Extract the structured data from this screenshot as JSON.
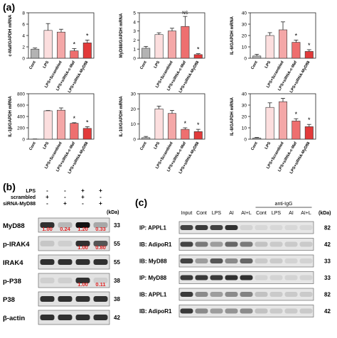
{
  "panels": {
    "a": "(a)",
    "b": "(b)",
    "c": "(c)"
  },
  "colors": {
    "gray": "#b3b3b3",
    "pink_light": "#fcdede",
    "pink": "#f4a7a7",
    "salmon": "#ee6f6f",
    "red": "#e23a3a"
  },
  "chart_data": [
    {
      "type": "bar",
      "ylabel": "c-Maf/GAPDH mRNA",
      "categories": [
        "Cont",
        "LPS",
        "LPS+Scrambled",
        "LPS+siRNA-c-Maf",
        "LPS+siRNA-MyD88"
      ],
      "values": [
        1.6,
        4.9,
        4.6,
        1.3,
        2.7
      ],
      "errors": [
        0.2,
        1.2,
        0.5,
        0.4,
        0.5
      ],
      "annotations": [
        "",
        "",
        "",
        "*",
        "*"
      ],
      "yticks": [
        0,
        2,
        4,
        6,
        8
      ],
      "ylim": [
        0,
        8
      ]
    },
    {
      "type": "bar",
      "ylabel": "MyD88/GAPDH mRNA",
      "categories": [
        "Cont",
        "LPS",
        "LPS+Scrambled",
        "LPS+siRNA-c-Maf",
        "LPS+siRNA-MyD88"
      ],
      "values": [
        1.1,
        2.6,
        3.0,
        3.5,
        0.4
      ],
      "errors": [
        0.2,
        0.2,
        0.3,
        1.1,
        0.1
      ],
      "annotations": [
        "",
        "",
        "",
        "NS",
        "*"
      ],
      "yticks": [
        0,
        1,
        2,
        3,
        4,
        5
      ],
      "ylim": [
        0,
        5
      ]
    },
    {
      "type": "bar",
      "ylabel": "IL-6/GAPDH mRNA",
      "categories": [
        "Cont",
        "LPS",
        "LPS+Scrambled",
        "LPS+siRNA-c-Maf",
        "LPS+siRNA-MyD88"
      ],
      "values": [
        2,
        20,
        25,
        14,
        6
      ],
      "errors": [
        1.5,
        2.5,
        7,
        2,
        1.5
      ],
      "annotations": [
        "",
        "",
        "",
        "*",
        "*"
      ],
      "yticks": [
        0,
        10,
        20,
        30,
        40
      ],
      "ylim": [
        0,
        40
      ]
    },
    {
      "type": "bar",
      "ylabel": "IL-1β/GAPDH mRNA",
      "categories": [
        "Cont",
        "LPS",
        "LPS+Scrambled",
        "LPS+siRNA-c-Maf",
        "LPS+siRNA-MyD88"
      ],
      "values": [
        2,
        500,
        510,
        280,
        190
      ],
      "errors": [
        2,
        5,
        40,
        10,
        30
      ],
      "annotations": [
        "",
        "",
        "",
        "*",
        "*"
      ],
      "yticks": [
        0,
        200,
        400,
        600,
        800
      ],
      "ylim": [
        0,
        800
      ]
    },
    {
      "type": "bar",
      "ylabel": "IL-10/GAPDH mRNA",
      "categories": [
        "Cont",
        "LPS",
        "LPS+Scrambled",
        "LPS+siRNA-c-Maf",
        "LPS+siRNA-MyD88"
      ],
      "values": [
        1,
        20,
        17,
        6.5,
        5
      ],
      "errors": [
        0.8,
        1.8,
        2,
        1,
        1.5
      ],
      "annotations": [
        "",
        "",
        "",
        "*",
        "*"
      ],
      "yticks": [
        0,
        10,
        20,
        30
      ],
      "ylim": [
        0,
        30
      ]
    },
    {
      "type": "bar",
      "ylabel": "IL-8/GAPDH mRNA",
      "categories": [
        "Cont",
        "LPS",
        "LPS+Scrambled",
        "LPS+siRNA-c-Maf",
        "LPS+siRNA-MyD88"
      ],
      "values": [
        1,
        28,
        33,
        16,
        11
      ],
      "errors": [
        0.5,
        4,
        3,
        2,
        2
      ],
      "annotations": [
        "",
        "",
        "",
        "*",
        "*"
      ],
      "yticks": [
        0,
        10,
        20,
        30,
        40
      ],
      "ylim": [
        0,
        40
      ]
    }
  ],
  "blot_b": {
    "conditions": [
      {
        "label": "LPS",
        "marks": [
          "-",
          "-",
          "+",
          "+"
        ]
      },
      {
        "label": "scrambled",
        "marks": [
          "+",
          "-",
          "+",
          "-"
        ]
      },
      {
        "label": "siRNA-MyD88",
        "marks": [
          "-",
          "+",
          "-",
          "+"
        ]
      }
    ],
    "kda_label": "(kDa)",
    "rows": [
      {
        "label": "MyD88",
        "kda": "33",
        "values": [
          "1.00",
          "0.24",
          "1.20",
          "0.33"
        ],
        "intensity": [
          1.0,
          0.24,
          1.2,
          0.33
        ]
      },
      {
        "label": "p-IRAK4",
        "kda": "55",
        "values": [
          "",
          "",
          "1.00",
          "0.80"
        ],
        "intensity": [
          0.15,
          0.1,
          1.0,
          0.8
        ]
      },
      {
        "label": "IRAK4",
        "kda": "55",
        "values": [
          "",
          "",
          "",
          ""
        ],
        "intensity": [
          1.0,
          1.0,
          1.0,
          1.0
        ]
      },
      {
        "label": "p-P38",
        "kda": "38",
        "values": [
          "",
          "",
          "1.00",
          "0.11"
        ],
        "intensity": [
          0.1,
          0.1,
          1.0,
          0.11
        ]
      },
      {
        "label": "P38",
        "kda": "38",
        "values": [
          "",
          "",
          "",
          ""
        ],
        "intensity": [
          1.0,
          1.0,
          1.0,
          1.0
        ]
      },
      {
        "label": "β-actin",
        "kda": "42",
        "values": [
          "",
          "",
          "",
          ""
        ],
        "intensity": [
          1.0,
          1.0,
          1.0,
          1.0
        ]
      }
    ]
  },
  "blot_c": {
    "anti_igg": "anti-IgG",
    "lanes": [
      "Input",
      "Cont",
      "LPS",
      "AI",
      "AI+L",
      "Cont",
      "LPS",
      "AI",
      "AI+L"
    ],
    "kda_label": "(kDa)",
    "rows": [
      {
        "label": "IP: APPL1",
        "kda": "82",
        "intensity": [
          0.9,
          0.95,
          0.9,
          1.0,
          0.1,
          0.08,
          0.08,
          0.08,
          0.08
        ]
      },
      {
        "label": "IB: AdipoR1",
        "kda": "42",
        "intensity": [
          0.9,
          0.6,
          0.4,
          0.7,
          0.6,
          0.2,
          0.15,
          0.15,
          0.15
        ]
      },
      {
        "label": "IB: MyD88",
        "kda": "33",
        "intensity": [
          0.9,
          0.4,
          0.8,
          0.5,
          0.7,
          0.15,
          0.15,
          0.1,
          0.1
        ]
      },
      {
        "label": "IP: MyD88",
        "kda": "33",
        "intensity": [
          0.95,
          0.95,
          0.95,
          1.0,
          1.0,
          0.1,
          0.1,
          0.1,
          0.1
        ]
      },
      {
        "label": "IB: APPL1",
        "kda": "82",
        "intensity": [
          0.95,
          0.5,
          0.4,
          0.5,
          0.55,
          0.2,
          0.15,
          0.15,
          0.15
        ]
      },
      {
        "label": "IB: AdipoR1",
        "kda": "42",
        "intensity": [
          0.95,
          0.5,
          0.4,
          0.45,
          0.5,
          0.2,
          0.15,
          0.15,
          0.15
        ]
      }
    ]
  }
}
